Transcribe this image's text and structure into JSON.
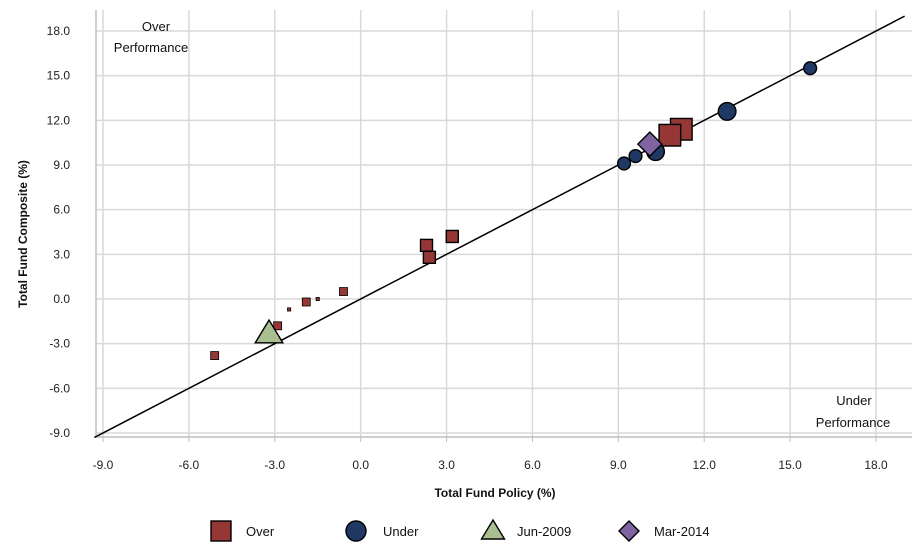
{
  "chart_data": {
    "type": "scatter",
    "title": "",
    "xlabel": "Total Fund Policy (%)",
    "ylabel": "Total Fund Composite (%)",
    "xlim": [
      -9.0,
      18.0
    ],
    "ylim": [
      -9.0,
      18.0
    ],
    "x_ticks": [
      "-9.0",
      "-6.0",
      "-3.0",
      "0.0",
      "3.0",
      "6.0",
      "9.0",
      "12.0",
      "15.0",
      "18.0"
    ],
    "y_ticks": [
      "18.0",
      "15.0",
      "12.0",
      "9.0",
      "6.0",
      "3.0",
      "0.0",
      "-3.0",
      "-6.0",
      "-9.0"
    ],
    "grid": true,
    "reference_line": "y = x",
    "annotations": {
      "over": [
        "Over",
        "Performance"
      ],
      "under": [
        "Under",
        "Performance"
      ]
    },
    "colors": {
      "over": "#953735",
      "under": "#1f3864",
      "jun2009": "#a9bf8f",
      "mar2014": "#8064a2",
      "grid": "#d9d9d9"
    },
    "series": [
      {
        "name": "Over",
        "marker": "square",
        "points": [
          {
            "x": -5.1,
            "y": -3.8,
            "weight": 1
          },
          {
            "x": -2.9,
            "y": -1.8,
            "weight": 1
          },
          {
            "x": -1.9,
            "y": -0.2,
            "weight": 1
          },
          {
            "x": -2.5,
            "y": -0.7,
            "weight": 0.3
          },
          {
            "x": -1.5,
            "y": 0.0,
            "weight": 0.3
          },
          {
            "x": -0.6,
            "y": 0.5,
            "weight": 1
          },
          {
            "x": 2.3,
            "y": 3.6,
            "weight": 1.5
          },
          {
            "x": 2.4,
            "y": 2.8,
            "weight": 1.5
          },
          {
            "x": 3.2,
            "y": 4.2,
            "weight": 1.5
          },
          {
            "x": 11.2,
            "y": 11.4,
            "weight": 2.7
          },
          {
            "x": 10.8,
            "y": 11.0,
            "weight": 2.7
          }
        ]
      },
      {
        "name": "Under",
        "marker": "circle",
        "points": [
          {
            "x": 9.2,
            "y": 9.1,
            "weight": 1.6
          },
          {
            "x": 9.6,
            "y": 9.6,
            "weight": 1.6
          },
          {
            "x": 10.3,
            "y": 9.9,
            "weight": 2.2
          },
          {
            "x": 12.8,
            "y": 12.6,
            "weight": 2.2
          },
          {
            "x": 15.7,
            "y": 15.5,
            "weight": 1.6
          }
        ]
      },
      {
        "name": "Jun-2009",
        "marker": "triangle",
        "points": [
          {
            "x": -3.2,
            "y": -2.3,
            "weight": 3
          }
        ]
      },
      {
        "name": "Mar-2014",
        "marker": "diamond",
        "points": [
          {
            "x": 10.1,
            "y": 10.4,
            "weight": 3
          }
        ]
      }
    ],
    "legend": [
      "Over",
      "Under",
      "Jun-2009",
      "Mar-2014"
    ],
    "legend_position": "bottom"
  }
}
